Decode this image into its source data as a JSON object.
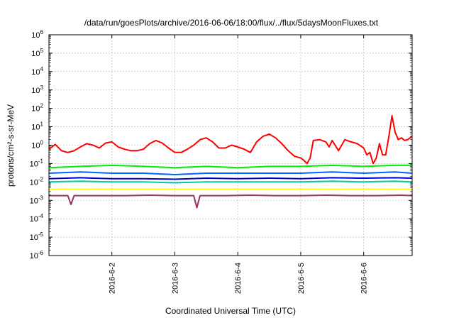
{
  "chart_data": {
    "type": "line",
    "title": "/data/run/goesPlots/archive/2016-06-06/18:00/flux/../flux/5daysMoonFluxes.txt",
    "xlabel": "Coordinated Universal Time (UTC)",
    "ylabel": "protons/cm²-s-sr-MeV",
    "y_scale": "log",
    "ylim": [
      1e-06,
      1000000
    ],
    "xlim": [
      0,
      5.77
    ],
    "x_ticks": [
      {
        "label": "2016-6-2",
        "value": 1
      },
      {
        "label": "2016-6-3",
        "value": 2
      },
      {
        "label": "2016-6-4",
        "value": 3
      },
      {
        "label": "2016-6-5",
        "value": 4
      },
      {
        "label": "2016-6-6",
        "value": 5
      }
    ],
    "y_ticks": [
      {
        "base": "10",
        "exp": "-6",
        "value": -6
      },
      {
        "base": "10",
        "exp": "-5",
        "value": -5
      },
      {
        "base": "10",
        "exp": "-4",
        "value": -4
      },
      {
        "base": "10",
        "exp": "-3",
        "value": -3
      },
      {
        "base": "10",
        "exp": "-2",
        "value": -2
      },
      {
        "base": "10",
        "exp": "-1",
        "value": -1
      },
      {
        "base": "10",
        "exp": "0",
        "value": 0
      },
      {
        "base": "10",
        "exp": "1",
        "value": 1
      },
      {
        "base": "10",
        "exp": "2",
        "value": 2
      },
      {
        "base": "10",
        "exp": "3",
        "value": 3
      },
      {
        "base": "10",
        "exp": "4",
        "value": 4
      },
      {
        "base": "10",
        "exp": "5",
        "value": 5
      },
      {
        "base": "10",
        "exp": "6",
        "value": 6
      }
    ],
    "grid": true,
    "series": [
      {
        "color": "#ff0000",
        "x": [
          0,
          0.1,
          0.2,
          0.3,
          0.4,
          0.5,
          0.6,
          0.7,
          0.8,
          0.9,
          1.0,
          1.1,
          1.2,
          1.3,
          1.4,
          1.5,
          1.6,
          1.7,
          1.8,
          1.9,
          2.0,
          2.1,
          2.2,
          2.3,
          2.4,
          2.5,
          2.6,
          2.7,
          2.8,
          2.9,
          3.0,
          3.1,
          3.2,
          3.3,
          3.4,
          3.5,
          3.6,
          3.7,
          3.8,
          3.9,
          4.0,
          4.05,
          4.1,
          4.15,
          4.2,
          4.3,
          4.4,
          4.45,
          4.5,
          4.6,
          4.7,
          4.8,
          4.9,
          5.0,
          5.05,
          5.1,
          5.15,
          5.2,
          5.25,
          5.3,
          5.35,
          5.4,
          5.45,
          5.5,
          5.55,
          5.6,
          5.65,
          5.7,
          5.77
        ],
        "y": [
          0.6,
          1.1,
          0.5,
          0.4,
          0.5,
          0.8,
          1.2,
          1.0,
          0.7,
          1.3,
          1.5,
          0.8,
          0.6,
          0.5,
          0.5,
          0.6,
          1.2,
          1.8,
          1.3,
          0.7,
          0.4,
          0.4,
          0.6,
          1.0,
          2.0,
          2.5,
          1.5,
          0.7,
          0.7,
          1.0,
          0.8,
          0.6,
          0.4,
          1.5,
          3.0,
          4.0,
          2.5,
          1.2,
          0.5,
          0.25,
          0.2,
          0.15,
          0.1,
          0.2,
          1.8,
          2.0,
          1.5,
          0.8,
          1.8,
          0.5,
          2.0,
          1.5,
          1.2,
          0.7,
          0.3,
          0.4,
          0.1,
          0.2,
          1.2,
          0.3,
          0.3,
          3.0,
          40.0,
          5.0,
          2.0,
          2.5,
          1.8,
          2.0,
          3.0
        ]
      },
      {
        "color": "#00ee00",
        "x": [
          0,
          0.5,
          1.0,
          1.5,
          2.0,
          2.5,
          3.0,
          3.5,
          4.0,
          4.5,
          5.0,
          5.5,
          5.77
        ],
        "y": [
          0.06,
          0.07,
          0.08,
          0.07,
          0.06,
          0.07,
          0.06,
          0.07,
          0.07,
          0.08,
          0.07,
          0.08,
          0.08
        ]
      },
      {
        "color": "#0066ff",
        "x": [
          0,
          0.5,
          1.0,
          1.5,
          2.0,
          2.5,
          3.0,
          3.5,
          4.0,
          4.5,
          5.0,
          5.5,
          5.77
        ],
        "y": [
          0.03,
          0.035,
          0.03,
          0.03,
          0.025,
          0.03,
          0.03,
          0.03,
          0.03,
          0.035,
          0.03,
          0.035,
          0.03
        ]
      },
      {
        "color": "#0000cc",
        "x": [
          0,
          0.5,
          1.0,
          1.5,
          2.0,
          2.5,
          3.0,
          3.5,
          4.0,
          4.5,
          5.0,
          5.5,
          5.77
        ],
        "y": [
          0.015,
          0.017,
          0.015,
          0.015,
          0.014,
          0.016,
          0.015,
          0.016,
          0.015,
          0.017,
          0.016,
          0.017,
          0.016
        ]
      },
      {
        "color": "#00ccaa",
        "x": [
          0,
          0.5,
          1.0,
          1.5,
          2.0,
          2.5,
          3.0,
          3.5,
          4.0,
          4.5,
          5.0,
          5.5,
          5.77
        ],
        "y": [
          0.01,
          0.011,
          0.01,
          0.01,
          0.009,
          0.01,
          0.01,
          0.01,
          0.01,
          0.011,
          0.01,
          0.011,
          0.01
        ]
      },
      {
        "color": "#ffff00",
        "x": [
          0,
          0.5,
          1.0,
          1.5,
          2.0,
          2.5,
          3.0,
          3.5,
          4.0,
          4.5,
          5.0,
          5.5,
          5.77
        ],
        "y": [
          0.004,
          0.004,
          0.004,
          0.004,
          0.004,
          0.004,
          0.004,
          0.004,
          0.004,
          0.004,
          0.004,
          0.004,
          0.004
        ]
      },
      {
        "color": "#993366",
        "x": [
          0,
          0.3,
          0.35,
          0.4,
          0.8,
          1.2,
          1.6,
          2.0,
          2.3,
          2.35,
          2.4,
          2.8,
          3.2,
          3.6,
          4.0,
          4.4,
          4.8,
          5.2,
          5.6,
          5.77
        ],
        "y": [
          0.0018,
          0.0018,
          0.0006,
          0.0018,
          0.0018,
          0.0018,
          0.0019,
          0.0018,
          0.0018,
          0.0004,
          0.0018,
          0.0018,
          0.0019,
          0.0018,
          0.0018,
          0.0019,
          0.0018,
          0.0018,
          0.0019,
          0.0018
        ]
      }
    ]
  }
}
